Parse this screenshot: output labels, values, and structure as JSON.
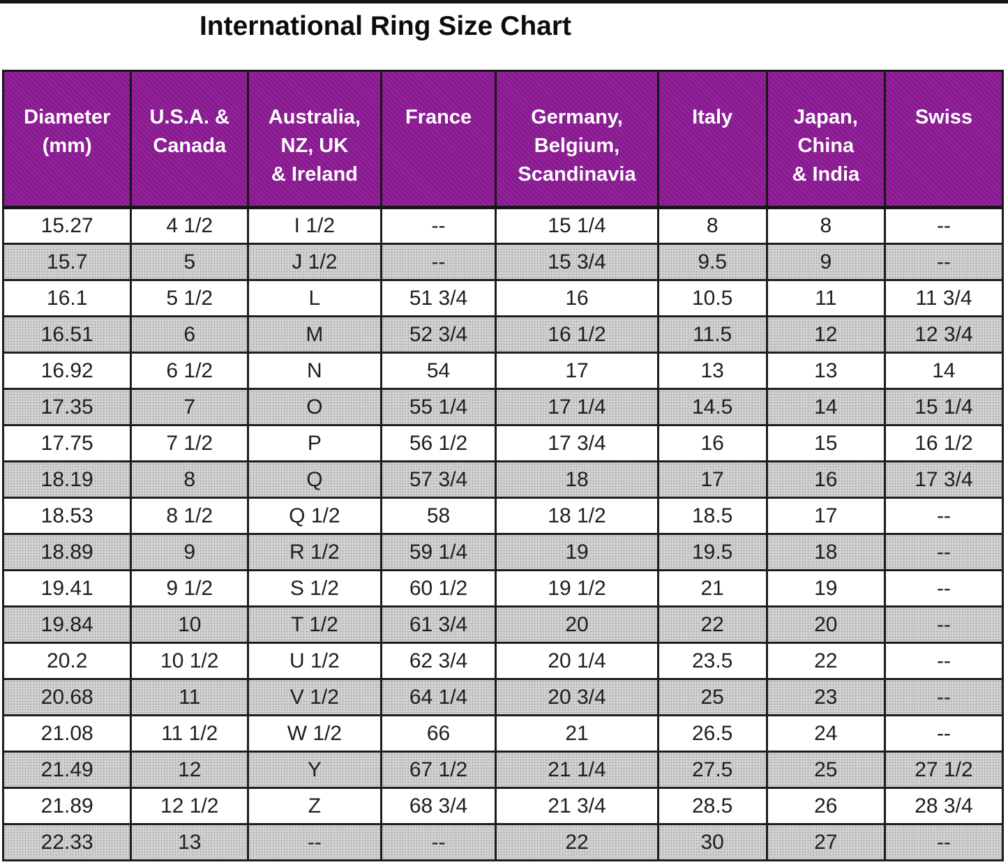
{
  "page": {
    "title": "International Ring Size Chart"
  },
  "colors": {
    "header_bg": "#8d1b96",
    "header_text": "#ffffff",
    "row_even_bg": "#d2d2d2",
    "row_odd_bg": "#ffffff",
    "grid_border": "#1d1d1d",
    "title_text": "#0c0c0c"
  },
  "chart_data": {
    "type": "table",
    "title": "International Ring Size Chart",
    "empty_marker": "--",
    "layout": {
      "striped": true,
      "stripe_order": [
        "white",
        "gray"
      ],
      "header_position": "top",
      "grid": true
    },
    "columns": [
      "Diameter\n(mm)",
      "U.S.A. &\nCanada",
      "Australia,\nNZ, UK\n& Ireland",
      "France",
      "Germany,\nBelgium,\nScandinavia",
      "Italy",
      "Japan,\nChina\n& India",
      "Swiss"
    ],
    "rows": [
      [
        "15.27",
        "4 1/2",
        "I 1/2",
        "--",
        "15 1/4",
        "8",
        "8",
        "--"
      ],
      [
        "15.7",
        "5",
        "J 1/2",
        "--",
        "15 3/4",
        "9.5",
        "9",
        "--"
      ],
      [
        "16.1",
        "5 1/2",
        "L",
        "51 3/4",
        "16",
        "10.5",
        "11",
        "11 3/4"
      ],
      [
        "16.51",
        "6",
        "M",
        "52 3/4",
        "16 1/2",
        "11.5",
        "12",
        "12 3/4"
      ],
      [
        "16.92",
        "6 1/2",
        "N",
        "54",
        "17",
        "13",
        "13",
        "14"
      ],
      [
        "17.35",
        "7",
        "O",
        "55 1/4",
        "17 1/4",
        "14.5",
        "14",
        "15 1/4"
      ],
      [
        "17.75",
        "7 1/2",
        "P",
        "56 1/2",
        "17 3/4",
        "16",
        "15",
        "16 1/2"
      ],
      [
        "18.19",
        "8",
        "Q",
        "57 3/4",
        "18",
        "17",
        "16",
        "17 3/4"
      ],
      [
        "18.53",
        "8 1/2",
        "Q 1/2",
        "58",
        "18 1/2",
        "18.5",
        "17",
        "--"
      ],
      [
        "18.89",
        "9",
        "R 1/2",
        "59 1/4",
        "19",
        "19.5",
        "18",
        "--"
      ],
      [
        "19.41",
        "9 1/2",
        "S 1/2",
        "60 1/2",
        "19 1/2",
        "21",
        "19",
        "--"
      ],
      [
        "19.84",
        "10",
        "T 1/2",
        "61 3/4",
        "20",
        "22",
        "20",
        "--"
      ],
      [
        "20.2",
        "10 1/2",
        "U 1/2",
        "62 3/4",
        "20 1/4",
        "23.5",
        "22",
        "--"
      ],
      [
        "20.68",
        "11",
        "V 1/2",
        "64 1/4",
        "20 3/4",
        "25",
        "23",
        "--"
      ],
      [
        "21.08",
        "11 1/2",
        "W 1/2",
        "66",
        "21",
        "26.5",
        "24",
        "--"
      ],
      [
        "21.49",
        "12",
        "Y",
        "67 1/2",
        "21 1/4",
        "27.5",
        "25",
        "27 1/2"
      ],
      [
        "21.89",
        "12 1/2",
        "Z",
        "68 3/4",
        "21 3/4",
        "28.5",
        "26",
        "28 3/4"
      ],
      [
        "22.33",
        "13",
        "--",
        "--",
        "22",
        "30",
        "27",
        "--"
      ]
    ]
  }
}
